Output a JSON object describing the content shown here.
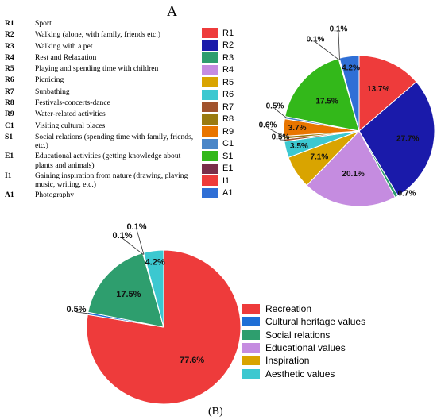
{
  "panel_a_label": "A",
  "panel_b_label": "(B)",
  "codes": [
    {
      "code": "R1",
      "desc": "Sport",
      "tall": false
    },
    {
      "code": "R2",
      "desc": "Walking (alone, with family, friends etc.)",
      "tall": false
    },
    {
      "code": "R3",
      "desc": "Walking with a pet",
      "tall": false
    },
    {
      "code": "R4",
      "desc": "Rest and Relaxation",
      "tall": false
    },
    {
      "code": "R5",
      "desc": "Playing and spending time with children",
      "tall": false
    },
    {
      "code": "R6",
      "desc": "Picnicing",
      "tall": false
    },
    {
      "code": "R7",
      "desc": "Sunbathing",
      "tall": false
    },
    {
      "code": "R8",
      "desc": "Festivals-concerts-dance",
      "tall": false
    },
    {
      "code": "R9",
      "desc": "Water-related activities",
      "tall": false
    },
    {
      "code": "C1",
      "desc": "Visiting cultural places",
      "tall": false
    },
    {
      "code": "S1",
      "desc": "Social relations (spending time with family, friends, etc.)",
      "tall": true
    },
    {
      "code": "E1",
      "desc": "Educational activities (getting knowledge about plants and animals)",
      "tall": true
    },
    {
      "code": "I1",
      "desc": "Gaining inspiration from nature (drawing, playing music, writing, etc.)",
      "tall": true
    },
    {
      "code": "A1",
      "desc": "Photography",
      "tall": false
    }
  ],
  "chart_data": [
    {
      "type": "pie",
      "panel": "A",
      "categories": [
        "R1",
        "R2",
        "R3",
        "R4",
        "R5",
        "R6",
        "R7",
        "R8",
        "R9",
        "C1",
        "S1",
        "E1",
        "I1",
        "A1"
      ],
      "values": [
        13.7,
        27.7,
        0.7,
        20.1,
        7.1,
        3.5,
        0.5,
        0.6,
        3.7,
        0.5,
        17.5,
        0.1,
        0.1,
        4.2
      ],
      "labels": [
        "13.7%",
        "27.7%",
        "0.7%",
        "20.1%",
        "7.1%",
        "3.5%",
        "0.5%",
        "0.6%",
        "3.7%",
        "0.5%",
        "17.5%",
        "0.1%",
        "0.1%",
        "4.2%"
      ],
      "colors": [
        "#ee3b3b",
        "#1a1aaa",
        "#2e9e6e",
        "#c58ce0",
        "#d9a400",
        "#3cc8d0",
        "#a0522d",
        "#9a7a10",
        "#e87500",
        "#4a86c8",
        "#33b81a",
        "#7a2e4a",
        "#ee3b3b",
        "#2f6fd6"
      ],
      "legend_position": "left"
    },
    {
      "type": "pie",
      "panel": "B",
      "categories": [
        "Recreation",
        "Cultural heritage values",
        "Social relations",
        "Educational values",
        "Inspiration",
        "Aesthetic values"
      ],
      "values": [
        77.6,
        0.5,
        17.5,
        0.1,
        0.1,
        4.2
      ],
      "labels": [
        "77.6%",
        "0.5%",
        "17.5%",
        "0.1%",
        "0.1%",
        "4.2%"
      ],
      "colors": [
        "#ee3b3b",
        "#1f6fd6",
        "#2e9e6e",
        "#c58ce0",
        "#d9a400",
        "#3cc8d0"
      ],
      "legend_position": "right"
    }
  ]
}
